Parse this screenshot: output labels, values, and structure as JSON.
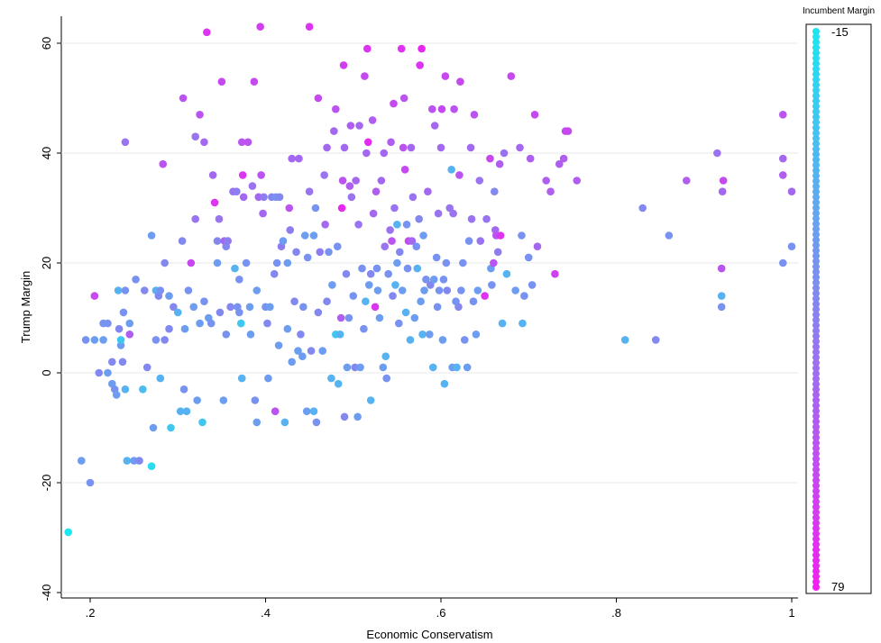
{
  "chart_data": {
    "type": "scatter",
    "title": "",
    "xlabel": "Economic Conservatism",
    "ylabel": "Trump Margin",
    "xlim": [
      0.17,
      1.0
    ],
    "ylim": [
      -41,
      65
    ],
    "xticks": [
      0.2,
      0.4,
      0.6,
      0.8,
      1.0
    ],
    "xtick_labels": [
      ".2",
      ".4",
      ".6",
      ".8",
      "1"
    ],
    "yticks": [
      -40,
      -20,
      0,
      20,
      40,
      60
    ],
    "ytick_labels": [
      "-40",
      "-20",
      "0",
      "20",
      "40",
      "60"
    ],
    "grid": "horizontal",
    "legend": {
      "title": "Incumbent Margin",
      "min": -15,
      "max": 79,
      "min_label": "-15",
      "max_label": "79",
      "placement": "right",
      "color_low": "#1ee6f0",
      "color_high": "#f021f0"
    },
    "points": [
      [
        0.175,
        -29,
        -15
      ],
      [
        0.19,
        -16,
        20
      ],
      [
        0.2,
        -20,
        25
      ],
      [
        0.195,
        6,
        25
      ],
      [
        0.205,
        6,
        20
      ],
      [
        0.205,
        14,
        60
      ],
      [
        0.21,
        0,
        30
      ],
      [
        0.215,
        6,
        20
      ],
      [
        0.215,
        9,
        25
      ],
      [
        0.22,
        0,
        20
      ],
      [
        0.22,
        9,
        25
      ],
      [
        0.225,
        2,
        30
      ],
      [
        0.225,
        -2,
        20
      ],
      [
        0.228,
        -3,
        25
      ],
      [
        0.23,
        -4,
        20
      ],
      [
        0.232,
        15,
        10
      ],
      [
        0.233,
        8,
        30
      ],
      [
        0.235,
        5,
        20
      ],
      [
        0.235,
        6,
        0
      ],
      [
        0.237,
        2,
        30
      ],
      [
        0.238,
        11,
        25
      ],
      [
        0.24,
        -3,
        10
      ],
      [
        0.24,
        42,
        40
      ],
      [
        0.24,
        15,
        25
      ],
      [
        0.242,
        -16,
        10
      ],
      [
        0.245,
        9,
        20
      ],
      [
        0.245,
        7,
        50
      ],
      [
        0.25,
        -16,
        20
      ],
      [
        0.252,
        17,
        25
      ],
      [
        0.256,
        -16,
        30
      ],
      [
        0.26,
        -3,
        5
      ],
      [
        0.262,
        15,
        30
      ],
      [
        0.265,
        1,
        30
      ],
      [
        0.27,
        -17,
        -10
      ],
      [
        0.27,
        25,
        20
      ],
      [
        0.272,
        -10,
        20
      ],
      [
        0.275,
        6,
        25
      ],
      [
        0.275,
        15,
        10
      ],
      [
        0.278,
        14,
        30
      ],
      [
        0.28,
        -1,
        10
      ],
      [
        0.28,
        15,
        25
      ],
      [
        0.283,
        38,
        55
      ],
      [
        0.285,
        20,
        30
      ],
      [
        0.285,
        6,
        30
      ],
      [
        0.29,
        8,
        30
      ],
      [
        0.29,
        14,
        20
      ],
      [
        0.292,
        -10,
        0
      ],
      [
        0.295,
        12,
        30
      ],
      [
        0.3,
        11,
        10
      ],
      [
        0.303,
        -7,
        10
      ],
      [
        0.305,
        24,
        30
      ],
      [
        0.306,
        50,
        55
      ],
      [
        0.307,
        -3,
        25
      ],
      [
        0.308,
        8,
        20
      ],
      [
        0.31,
        -7,
        10
      ],
      [
        0.312,
        15,
        25
      ],
      [
        0.315,
        20,
        60
      ],
      [
        0.318,
        12,
        20
      ],
      [
        0.32,
        28,
        40
      ],
      [
        0.32,
        43,
        40
      ],
      [
        0.322,
        -5,
        20
      ],
      [
        0.325,
        47,
        55
      ],
      [
        0.325,
        9,
        20
      ],
      [
        0.328,
        -9,
        0
      ],
      [
        0.33,
        42,
        45
      ],
      [
        0.33,
        13,
        25
      ],
      [
        0.333,
        62,
        70
      ],
      [
        0.335,
        10,
        20
      ],
      [
        0.338,
        9,
        25
      ],
      [
        0.34,
        36,
        45
      ],
      [
        0.342,
        31,
        70
      ],
      [
        0.345,
        24,
        30
      ],
      [
        0.345,
        20,
        20
      ],
      [
        0.347,
        28,
        40
      ],
      [
        0.348,
        11,
        30
      ],
      [
        0.35,
        53,
        60
      ],
      [
        0.352,
        -5,
        20
      ],
      [
        0.353,
        24,
        45
      ],
      [
        0.355,
        7,
        25
      ],
      [
        0.355,
        23,
        30
      ],
      [
        0.357,
        24,
        35
      ],
      [
        0.36,
        12,
        30
      ],
      [
        0.363,
        33,
        40
      ],
      [
        0.365,
        19,
        10
      ],
      [
        0.367,
        33,
        35
      ],
      [
        0.368,
        12,
        25
      ],
      [
        0.37,
        17,
        25
      ],
      [
        0.37,
        11,
        25
      ],
      [
        0.372,
        9,
        0
      ],
      [
        0.373,
        -1,
        10
      ],
      [
        0.373,
        42,
        55
      ],
      [
        0.374,
        36,
        70
      ],
      [
        0.375,
        32,
        45
      ],
      [
        0.378,
        20,
        25
      ],
      [
        0.38,
        42,
        55
      ],
      [
        0.382,
        12,
        20
      ],
      [
        0.383,
        7,
        20
      ],
      [
        0.385,
        34,
        40
      ],
      [
        0.387,
        53,
        60
      ],
      [
        0.388,
        -5,
        25
      ],
      [
        0.39,
        15,
        20
      ],
      [
        0.39,
        -9,
        20
      ],
      [
        0.392,
        32,
        45
      ],
      [
        0.394,
        63,
        65
      ],
      [
        0.395,
        36,
        55
      ],
      [
        0.397,
        29,
        45
      ],
      [
        0.398,
        32,
        35
      ],
      [
        0.4,
        12,
        25
      ],
      [
        0.402,
        9,
        30
      ],
      [
        0.403,
        -1,
        20
      ],
      [
        0.405,
        12,
        20
      ],
      [
        0.407,
        32,
        30
      ],
      [
        0.41,
        18,
        30
      ],
      [
        0.411,
        -7,
        55
      ],
      [
        0.412,
        32,
        25
      ],
      [
        0.413,
        20,
        25
      ],
      [
        0.415,
        5,
        20
      ],
      [
        0.416,
        32,
        30
      ],
      [
        0.418,
        23,
        35
      ],
      [
        0.42,
        24,
        20
      ],
      [
        0.422,
        -9,
        10
      ],
      [
        0.425,
        20,
        20
      ],
      [
        0.425,
        8,
        20
      ],
      [
        0.427,
        30,
        55
      ],
      [
        0.428,
        26,
        35
      ],
      [
        0.43,
        2,
        20
      ],
      [
        0.43,
        39,
        45
      ],
      [
        0.433,
        13,
        30
      ],
      [
        0.435,
        22,
        30
      ],
      [
        0.437,
        4,
        20
      ],
      [
        0.438,
        39,
        45
      ],
      [
        0.44,
        7,
        30
      ],
      [
        0.442,
        3,
        20
      ],
      [
        0.443,
        12,
        25
      ],
      [
        0.445,
        25,
        20
      ],
      [
        0.447,
        -7,
        20
      ],
      [
        0.448,
        21,
        25
      ],
      [
        0.45,
        63,
        70
      ],
      [
        0.45,
        33,
        40
      ],
      [
        0.452,
        4,
        30
      ],
      [
        0.455,
        -7,
        10
      ],
      [
        0.455,
        25,
        20
      ],
      [
        0.457,
        30,
        25
      ],
      [
        0.458,
        -9,
        25
      ],
      [
        0.46,
        50,
        60
      ],
      [
        0.46,
        11,
        30
      ],
      [
        0.462,
        22,
        35
      ],
      [
        0.465,
        4,
        20
      ],
      [
        0.467,
        36,
        40
      ],
      [
        0.468,
        27,
        45
      ],
      [
        0.47,
        13,
        30
      ],
      [
        0.47,
        41,
        45
      ],
      [
        0.472,
        22,
        25
      ],
      [
        0.475,
        -1,
        10
      ],
      [
        0.476,
        16,
        20
      ],
      [
        0.478,
        44,
        45
      ],
      [
        0.48,
        7,
        0
      ],
      [
        0.48,
        48,
        55
      ],
      [
        0.482,
        23,
        25
      ],
      [
        0.483,
        -2,
        10
      ],
      [
        0.485,
        7,
        10
      ],
      [
        0.486,
        10,
        50
      ],
      [
        0.487,
        30,
        75
      ],
      [
        0.488,
        35,
        55
      ],
      [
        0.489,
        56,
        65
      ],
      [
        0.49,
        -8,
        30
      ],
      [
        0.49,
        41,
        45
      ],
      [
        0.492,
        18,
        30
      ],
      [
        0.493,
        1,
        20
      ],
      [
        0.495,
        10,
        25
      ],
      [
        0.496,
        34,
        50
      ],
      [
        0.497,
        45,
        50
      ],
      [
        0.498,
        32,
        40
      ],
      [
        0.5,
        14,
        25
      ],
      [
        0.502,
        1,
        30
      ],
      [
        0.503,
        35,
        45
      ],
      [
        0.505,
        -8,
        20
      ],
      [
        0.506,
        27,
        40
      ],
      [
        0.507,
        45,
        45
      ],
      [
        0.508,
        1,
        20
      ],
      [
        0.51,
        19,
        25
      ],
      [
        0.512,
        8,
        25
      ],
      [
        0.513,
        54,
        60
      ],
      [
        0.514,
        13,
        10
      ],
      [
        0.515,
        40,
        45
      ],
      [
        0.516,
        59,
        70
      ],
      [
        0.517,
        42,
        75
      ],
      [
        0.518,
        16,
        20
      ],
      [
        0.52,
        -5,
        10
      ],
      [
        0.52,
        18,
        30
      ],
      [
        0.522,
        46,
        50
      ],
      [
        0.523,
        29,
        45
      ],
      [
        0.525,
        12,
        70
      ],
      [
        0.526,
        33,
        50
      ],
      [
        0.527,
        19,
        25
      ],
      [
        0.528,
        15,
        20
      ],
      [
        0.53,
        10,
        20
      ],
      [
        0.532,
        35,
        45
      ],
      [
        0.534,
        1,
        20
      ],
      [
        0.535,
        40,
        45
      ],
      [
        0.536,
        23,
        40
      ],
      [
        0.537,
        3,
        10
      ],
      [
        0.538,
        -1,
        25
      ],
      [
        0.54,
        18,
        25
      ],
      [
        0.542,
        26,
        40
      ],
      [
        0.543,
        42,
        50
      ],
      [
        0.544,
        24,
        55
      ],
      [
        0.545,
        14,
        30
      ],
      [
        0.546,
        49,
        60
      ],
      [
        0.547,
        30,
        40
      ],
      [
        0.548,
        16,
        10
      ],
      [
        0.55,
        20,
        20
      ],
      [
        0.55,
        27,
        10
      ],
      [
        0.552,
        9,
        25
      ],
      [
        0.553,
        22,
        30
      ],
      [
        0.555,
        59,
        70
      ],
      [
        0.556,
        15,
        20
      ],
      [
        0.557,
        41,
        55
      ],
      [
        0.558,
        50,
        55
      ],
      [
        0.559,
        37,
        60
      ],
      [
        0.56,
        11,
        10
      ],
      [
        0.561,
        27,
        25
      ],
      [
        0.562,
        19,
        25
      ],
      [
        0.563,
        24,
        60
      ],
      [
        0.565,
        6,
        10
      ],
      [
        0.566,
        41,
        45
      ],
      [
        0.567,
        24,
        45
      ],
      [
        0.568,
        32,
        40
      ],
      [
        0.57,
        10,
        20
      ],
      [
        0.572,
        23,
        25
      ],
      [
        0.573,
        19,
        10
      ],
      [
        0.575,
        28,
        30
      ],
      [
        0.576,
        56,
        70
      ],
      [
        0.577,
        13,
        20
      ],
      [
        0.578,
        59,
        75
      ],
      [
        0.579,
        7,
        10
      ],
      [
        0.58,
        25,
        20
      ],
      [
        0.581,
        15,
        20
      ],
      [
        0.583,
        17,
        25
      ],
      [
        0.585,
        33,
        45
      ],
      [
        0.587,
        7,
        20
      ],
      [
        0.588,
        16,
        30
      ],
      [
        0.59,
        48,
        55
      ],
      [
        0.591,
        1,
        10
      ],
      [
        0.592,
        17,
        20
      ],
      [
        0.593,
        45,
        45
      ],
      [
        0.595,
        21,
        25
      ],
      [
        0.596,
        12,
        25
      ],
      [
        0.597,
        29,
        40
      ],
      [
        0.598,
        15,
        25
      ],
      [
        0.6,
        41,
        45
      ],
      [
        0.601,
        48,
        60
      ],
      [
        0.602,
        6,
        20
      ],
      [
        0.603,
        17,
        25
      ],
      [
        0.604,
        -2,
        10
      ],
      [
        0.605,
        54,
        60
      ],
      [
        0.606,
        20,
        25
      ],
      [
        0.607,
        15,
        30
      ],
      [
        0.61,
        30,
        40
      ],
      [
        0.612,
        37,
        10
      ],
      [
        0.613,
        1,
        20
      ],
      [
        0.614,
        29,
        40
      ],
      [
        0.615,
        48,
        55
      ],
      [
        0.617,
        13,
        25
      ],
      [
        0.618,
        1,
        10
      ],
      [
        0.62,
        12,
        30
      ],
      [
        0.621,
        36,
        55
      ],
      [
        0.622,
        53,
        60
      ],
      [
        0.623,
        15,
        25
      ],
      [
        0.625,
        20,
        25
      ],
      [
        0.627,
        6,
        25
      ],
      [
        0.63,
        1,
        20
      ],
      [
        0.632,
        24,
        25
      ],
      [
        0.634,
        41,
        45
      ],
      [
        0.635,
        28,
        40
      ],
      [
        0.637,
        13,
        25
      ],
      [
        0.638,
        47,
        55
      ],
      [
        0.64,
        7,
        20
      ],
      [
        0.642,
        15,
        20
      ],
      [
        0.644,
        35,
        40
      ],
      [
        0.645,
        24,
        40
      ],
      [
        0.65,
        14,
        70
      ],
      [
        0.652,
        28,
        40
      ],
      [
        0.656,
        39,
        60
      ],
      [
        0.657,
        19,
        20
      ],
      [
        0.658,
        16,
        25
      ],
      [
        0.66,
        20,
        55
      ],
      [
        0.661,
        33,
        30
      ],
      [
        0.662,
        26,
        45
      ],
      [
        0.663,
        25,
        55
      ],
      [
        0.665,
        22,
        35
      ],
      [
        0.667,
        38,
        50
      ],
      [
        0.668,
        25,
        70
      ],
      [
        0.67,
        9,
        10
      ],
      [
        0.672,
        40,
        40
      ],
      [
        0.675,
        18,
        10
      ],
      [
        0.68,
        54,
        60
      ],
      [
        0.685,
        15,
        20
      ],
      [
        0.69,
        41,
        45
      ],
      [
        0.692,
        25,
        25
      ],
      [
        0.693,
        9,
        10
      ],
      [
        0.695,
        14,
        25
      ],
      [
        0.7,
        21,
        25
      ],
      [
        0.702,
        39,
        50
      ],
      [
        0.704,
        16,
        25
      ],
      [
        0.707,
        47,
        60
      ],
      [
        0.71,
        23,
        45
      ],
      [
        0.72,
        35,
        50
      ],
      [
        0.725,
        33,
        50
      ],
      [
        0.73,
        18,
        65
      ],
      [
        0.735,
        38,
        50
      ],
      [
        0.74,
        39,
        50
      ],
      [
        0.742,
        44,
        60
      ],
      [
        0.745,
        44,
        60
      ],
      [
        0.755,
        35,
        50
      ],
      [
        0.81,
        6,
        10
      ],
      [
        0.83,
        30,
        30
      ],
      [
        0.845,
        6,
        30
      ],
      [
        0.86,
        25,
        25
      ],
      [
        0.88,
        35,
        50
      ],
      [
        0.915,
        40,
        40
      ],
      [
        0.92,
        19,
        55
      ],
      [
        0.92,
        12,
        25
      ],
      [
        0.92,
        14,
        10
      ],
      [
        0.921,
        33,
        45
      ],
      [
        0.922,
        35,
        60
      ],
      [
        0.99,
        47,
        55
      ],
      [
        0.99,
        39,
        45
      ],
      [
        0.99,
        36,
        50
      ],
      [
        0.99,
        20,
        25
      ],
      [
        1.0,
        33,
        45
      ],
      [
        1.0,
        23,
        25
      ]
    ]
  }
}
